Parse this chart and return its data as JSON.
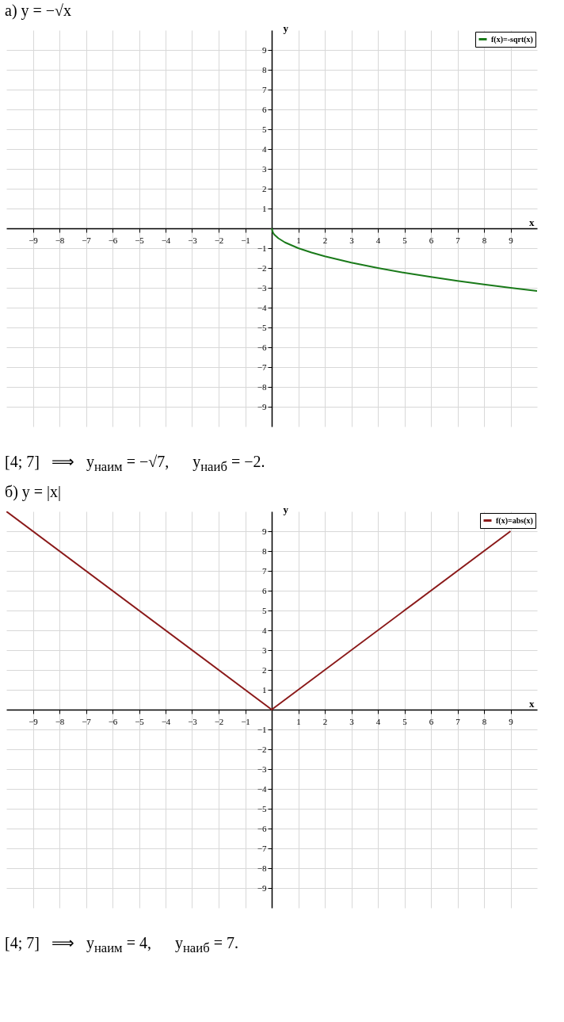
{
  "chart_data": [
    {
      "type": "line",
      "title": "а) y = −√x",
      "xlabel": "x",
      "ylabel": "y",
      "xlim": [
        -10,
        10
      ],
      "ylim": [
        -10,
        10
      ],
      "xticks": [
        -9,
        -8,
        -7,
        -6,
        -5,
        -4,
        -3,
        -2,
        -1,
        1,
        2,
        3,
        4,
        5,
        6,
        7,
        8,
        9
      ],
      "yticks": [
        -9,
        -8,
        -7,
        -6,
        -5,
        -4,
        -3,
        -2,
        -1,
        1,
        2,
        3,
        4,
        5,
        6,
        7,
        8,
        9
      ],
      "grid": true,
      "legend": "top right",
      "annotations": [
        "[4; 7]   ⟹   y$_{наим}$ = −√7,      y$_{наиб}$ = −2."
      ],
      "series": [
        {
          "name": "f(x)=-sqrt(x)",
          "color": "#1a7a1a",
          "x": [
            0,
            0.05,
            0.1,
            0.25,
            0.5,
            1,
            1.5,
            2,
            3,
            4,
            5,
            6,
            7,
            8,
            9,
            10
          ],
          "values": [
            0,
            -0.22,
            -0.32,
            -0.5,
            -0.71,
            -1,
            -1.22,
            -1.41,
            -1.73,
            -2,
            -2.24,
            -2.45,
            -2.65,
            -2.83,
            -3,
            -3.16
          ]
        }
      ]
    },
    {
      "type": "line",
      "title": "б) y = |x|",
      "xlabel": "x",
      "ylabel": "y",
      "xlim": [
        -10,
        10
      ],
      "ylim": [
        -10,
        10
      ],
      "xticks": [
        -9,
        -8,
        -7,
        -6,
        -5,
        -4,
        -3,
        -2,
        -1,
        1,
        2,
        3,
        4,
        5,
        6,
        7,
        8,
        9
      ],
      "yticks": [
        -9,
        -8,
        -7,
        -6,
        -5,
        -4,
        -3,
        -2,
        -1,
        1,
        2,
        3,
        4,
        5,
        6,
        7,
        8,
        9
      ],
      "grid": true,
      "legend": "top right",
      "annotations": [
        "[4; 7]   ⟹   y$_{наим}$ = 4,      y$_{наиб}$ = 7."
      ],
      "series": [
        {
          "name": "f(x)=abs(x)",
          "color": "#8b1a1a",
          "x": [
            -10,
            0,
            9
          ],
          "values": [
            10,
            0,
            9
          ]
        }
      ]
    }
  ]
}
